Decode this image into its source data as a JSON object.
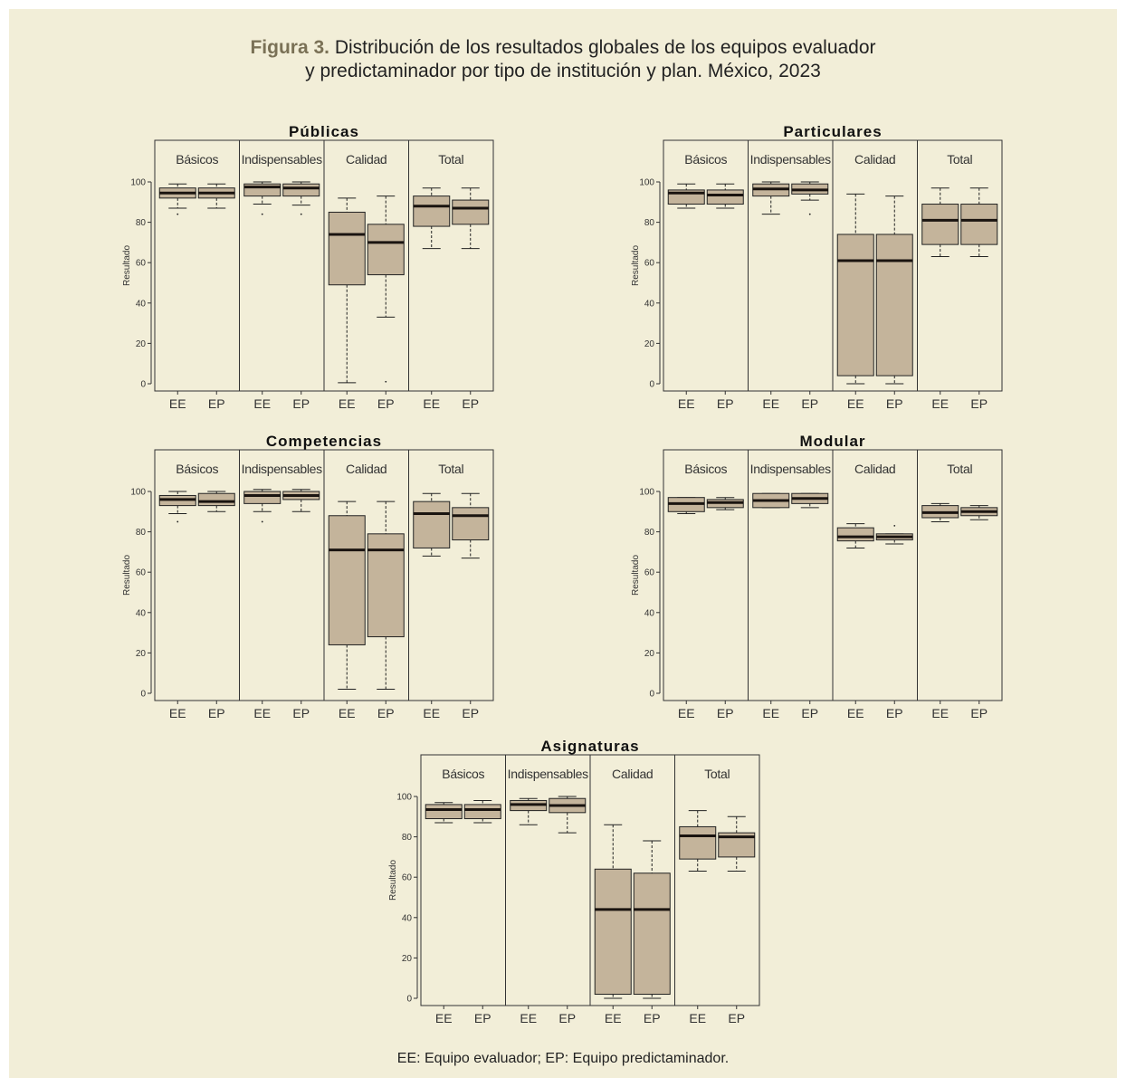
{
  "figure": {
    "label": "Figura 3.",
    "title_line1": "Distribución de los resultados globales de los equipos evaluador",
    "title_line2": "y predictaminador por tipo de institución y plan. México, 2023",
    "footnote": "EE: Equipo evaluador; EP: Equipo predictaminador."
  },
  "colors": {
    "background": "#f2eed8",
    "box_fill": "#c4b49b",
    "median": "#1a1410",
    "axis": "#333333"
  },
  "chart_data": [
    {
      "type": "boxplot",
      "title": "Públicas",
      "ylabel": "Resultado",
      "yticks": [
        0,
        20,
        40,
        60,
        80,
        100
      ],
      "ylim": [
        -2,
        120
      ],
      "panels": [
        "Básicos",
        "Indispensables",
        "Calidad",
        "Total"
      ],
      "categories": [
        "EE",
        "EP"
      ],
      "series": [
        {
          "panel": "Básicos",
          "boxes": [
            {
              "label": "EE",
              "min": 87,
              "q1": 92,
              "median": 94.5,
              "q3": 97,
              "max": 99,
              "outliers": [
                84
              ]
            },
            {
              "label": "EP",
              "min": 87,
              "q1": 92,
              "median": 94.5,
              "q3": 97,
              "max": 99,
              "outliers": []
            }
          ]
        },
        {
          "panel": "Indispensables",
          "boxes": [
            {
              "label": "EE",
              "min": 89,
              "q1": 93,
              "median": 97.5,
              "q3": 99,
              "max": 100,
              "outliers": [
                84
              ]
            },
            {
              "label": "EP",
              "min": 88.5,
              "q1": 93,
              "median": 97,
              "q3": 99,
              "max": 100,
              "outliers": [
                84
              ]
            }
          ]
        },
        {
          "panel": "Calidad",
          "boxes": [
            {
              "label": "EE",
              "min": 0.5,
              "q1": 49,
              "median": 74,
              "q3": 85,
              "max": 92,
              "outliers": []
            },
            {
              "label": "EP",
              "min": 33,
              "q1": 54,
              "median": 70,
              "q3": 79,
              "max": 93,
              "outliers": [
                1
              ]
            }
          ]
        },
        {
          "panel": "Total",
          "boxes": [
            {
              "label": "EE",
              "min": 67,
              "q1": 78,
              "median": 88,
              "q3": 93,
              "max": 97,
              "outliers": []
            },
            {
              "label": "EP",
              "min": 67,
              "q1": 79,
              "median": 87,
              "q3": 91,
              "max": 97,
              "outliers": []
            }
          ]
        }
      ]
    },
    {
      "type": "boxplot",
      "title": "Particulares",
      "ylabel": "Resultado",
      "yticks": [
        0,
        20,
        40,
        60,
        80,
        100
      ],
      "ylim": [
        -2,
        120
      ],
      "panels": [
        "Básicos",
        "Indispensables",
        "Calidad",
        "Total"
      ],
      "categories": [
        "EE",
        "EP"
      ],
      "series": [
        {
          "panel": "Básicos",
          "boxes": [
            {
              "label": "EE",
              "min": 87,
              "q1": 89,
              "median": 94.5,
              "q3": 96,
              "max": 99,
              "outliers": []
            },
            {
              "label": "EP",
              "min": 87,
              "q1": 89,
              "median": 93.5,
              "q3": 96,
              "max": 99,
              "outliers": []
            }
          ]
        },
        {
          "panel": "Indispensables",
          "boxes": [
            {
              "label": "EE",
              "min": 84,
              "q1": 93,
              "median": 96.5,
              "q3": 99,
              "max": 100,
              "outliers": []
            },
            {
              "label": "EP",
              "min": 91,
              "q1": 94,
              "median": 96,
              "q3": 99,
              "max": 100,
              "outliers": [
                84
              ]
            }
          ]
        },
        {
          "panel": "Calidad",
          "boxes": [
            {
              "label": "EE",
              "min": 0,
              "q1": 4,
              "median": 61,
              "q3": 74,
              "max": 94,
              "outliers": []
            },
            {
              "label": "EP",
              "min": 0,
              "q1": 4,
              "median": 61,
              "q3": 74,
              "max": 93,
              "outliers": []
            }
          ]
        },
        {
          "panel": "Total",
          "boxes": [
            {
              "label": "EE",
              "min": 63,
              "q1": 69,
              "median": 81,
              "q3": 89,
              "max": 97,
              "outliers": []
            },
            {
              "label": "EP",
              "min": 63,
              "q1": 69,
              "median": 81,
              "q3": 89,
              "max": 97,
              "outliers": []
            }
          ]
        }
      ]
    },
    {
      "type": "boxplot",
      "title": "Competencias",
      "ylabel": "Resultado",
      "yticks": [
        0,
        20,
        40,
        60,
        80,
        100
      ],
      "ylim": [
        -2,
        120
      ],
      "panels": [
        "Básicos",
        "Indispensables",
        "Calidad",
        "Total"
      ],
      "categories": [
        "EE",
        "EP"
      ],
      "series": [
        {
          "panel": "Básicos",
          "boxes": [
            {
              "label": "EE",
              "min": 89,
              "q1": 93,
              "median": 96,
              "q3": 98,
              "max": 100,
              "outliers": [
                85
              ]
            },
            {
              "label": "EP",
              "min": 90,
              "q1": 93,
              "median": 95,
              "q3": 99,
              "max": 100,
              "outliers": []
            }
          ]
        },
        {
          "panel": "Indispensables",
          "boxes": [
            {
              "label": "EE",
              "min": 90,
              "q1": 94,
              "median": 98,
              "q3": 100,
              "max": 101,
              "outliers": [
                85
              ]
            },
            {
              "label": "EP",
              "min": 90,
              "q1": 96,
              "median": 98,
              "q3": 100,
              "max": 101,
              "outliers": []
            }
          ]
        },
        {
          "panel": "Calidad",
          "boxes": [
            {
              "label": "EE",
              "min": 2,
              "q1": 24,
              "median": 71,
              "q3": 88,
              "max": 95,
              "outliers": []
            },
            {
              "label": "EP",
              "min": 2,
              "q1": 28,
              "median": 71,
              "q3": 79,
              "max": 95,
              "outliers": []
            }
          ]
        },
        {
          "panel": "Total",
          "boxes": [
            {
              "label": "EE",
              "min": 68,
              "q1": 72,
              "median": 89,
              "q3": 95,
              "max": 99,
              "outliers": []
            },
            {
              "label": "EP",
              "min": 67,
              "q1": 76,
              "median": 88,
              "q3": 92,
              "max": 99,
              "outliers": []
            }
          ]
        }
      ]
    },
    {
      "type": "boxplot",
      "title": "Modular",
      "ylabel": "Resultado",
      "yticks": [
        0,
        20,
        40,
        60,
        80,
        100
      ],
      "ylim": [
        -2,
        120
      ],
      "panels": [
        "Básicos",
        "Indispensables",
        "Calidad",
        "Total"
      ],
      "categories": [
        "EE",
        "EP"
      ],
      "series": [
        {
          "panel": "Básicos",
          "boxes": [
            {
              "label": "EE",
              "min": 89,
              "q1": 90,
              "median": 94,
              "q3": 97,
              "max": 97,
              "outliers": []
            },
            {
              "label": "EP",
              "min": 91,
              "q1": 92,
              "median": 94.5,
              "q3": 96,
              "max": 97,
              "outliers": []
            }
          ]
        },
        {
          "panel": "Indispensables",
          "boxes": [
            {
              "label": "EE",
              "min": 92,
              "q1": 92,
              "median": 95.5,
              "q3": 99,
              "max": 99,
              "outliers": []
            },
            {
              "label": "EP",
              "min": 92,
              "q1": 94,
              "median": 96.5,
              "q3": 99,
              "max": 99,
              "outliers": []
            }
          ]
        },
        {
          "panel": "Calidad",
          "boxes": [
            {
              "label": "EE",
              "min": 72,
              "q1": 75.5,
              "median": 77.5,
              "q3": 82,
              "max": 84,
              "outliers": []
            },
            {
              "label": "EP",
              "min": 74,
              "q1": 76,
              "median": 77.5,
              "q3": 79,
              "max": 79,
              "outliers": [
                83
              ]
            }
          ]
        },
        {
          "panel": "Total",
          "boxes": [
            {
              "label": "EE",
              "min": 85,
              "q1": 87,
              "median": 89.5,
              "q3": 93,
              "max": 94,
              "outliers": []
            },
            {
              "label": "EP",
              "min": 86,
              "q1": 88,
              "median": 90,
              "q3": 92,
              "max": 93,
              "outliers": []
            }
          ]
        }
      ]
    },
    {
      "type": "boxplot",
      "title": "Asignaturas",
      "ylabel": "Resultado",
      "yticks": [
        0,
        20,
        40,
        60,
        80,
        100
      ],
      "ylim": [
        -2,
        120
      ],
      "panels": [
        "Básicos",
        "Indispensables",
        "Calidad",
        "Total"
      ],
      "categories": [
        "EE",
        "EP"
      ],
      "series": [
        {
          "panel": "Básicos",
          "boxes": [
            {
              "label": "EE",
              "min": 87,
              "q1": 89,
              "median": 93.5,
              "q3": 96,
              "max": 97,
              "outliers": []
            },
            {
              "label": "EP",
              "min": 87,
              "q1": 89,
              "median": 93.5,
              "q3": 96,
              "max": 98,
              "outliers": []
            }
          ]
        },
        {
          "panel": "Indispensables",
          "boxes": [
            {
              "label": "EE",
              "min": 86,
              "q1": 93,
              "median": 96,
              "q3": 98,
              "max": 99,
              "outliers": []
            },
            {
              "label": "EP",
              "min": 82,
              "q1": 92,
              "median": 95.5,
              "q3": 99,
              "max": 100,
              "outliers": []
            }
          ]
        },
        {
          "panel": "Calidad",
          "boxes": [
            {
              "label": "EE",
              "min": 0,
              "q1": 2,
              "median": 44,
              "q3": 64,
              "max": 86,
              "outliers": []
            },
            {
              "label": "EP",
              "min": 0,
              "q1": 2,
              "median": 44,
              "q3": 62,
              "max": 78,
              "outliers": []
            }
          ]
        },
        {
          "panel": "Total",
          "boxes": [
            {
              "label": "EE",
              "min": 63,
              "q1": 69,
              "median": 80.5,
              "q3": 85,
              "max": 93,
              "outliers": []
            },
            {
              "label": "EP",
              "min": 63,
              "q1": 70,
              "median": 80,
              "q3": 82,
              "max": 90,
              "outliers": []
            }
          ]
        }
      ]
    }
  ]
}
